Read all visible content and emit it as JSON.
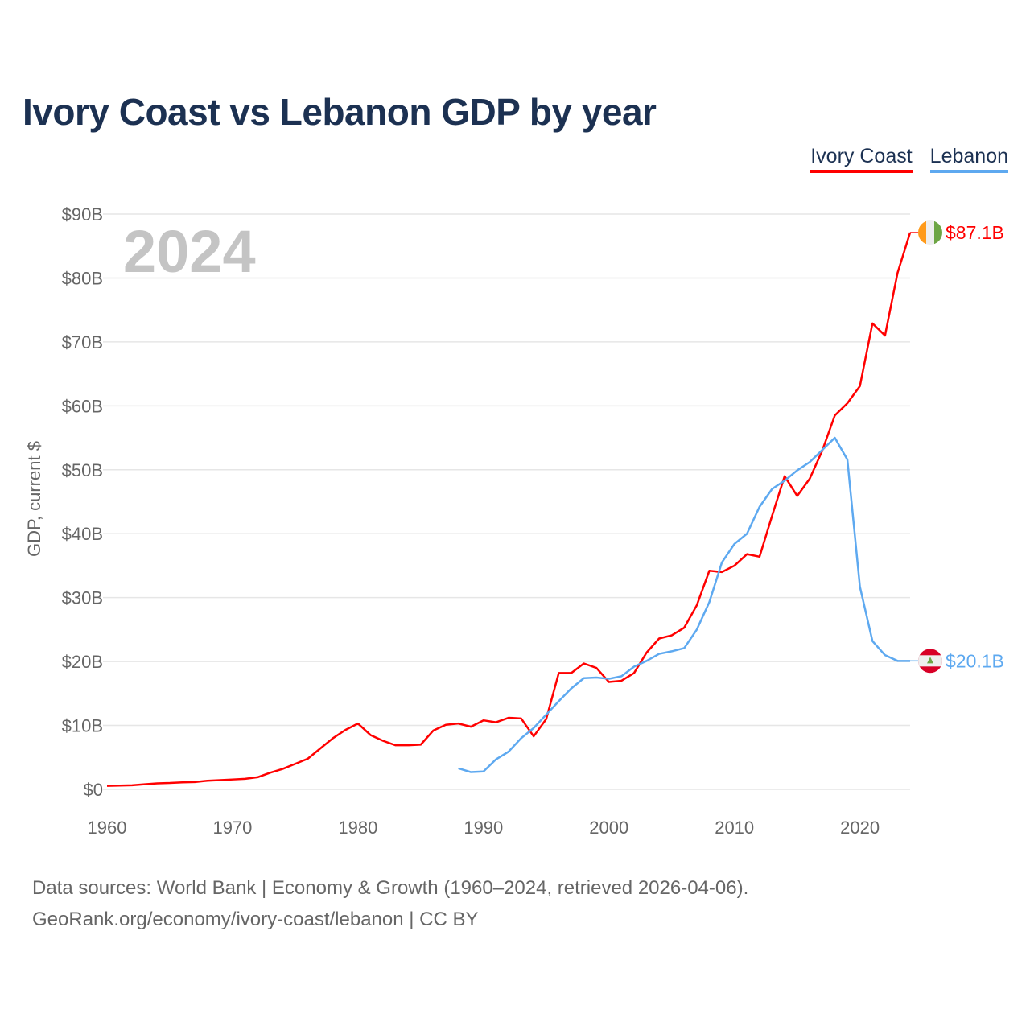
{
  "title": "Ivory Coast vs Lebanon GDP by year",
  "footer": {
    "line1": "Data sources: World Bank | Economy & Growth (1960–2024, retrieved 2026-04-06).",
    "line2": "GeoRank.org/economy/ivory-coast/lebanon | CC BY"
  },
  "chart_data": {
    "type": "line",
    "title": "Ivory Coast vs Lebanon GDP by year",
    "xlabel": "",
    "ylabel": "GDP, current $",
    "year_watermark": "2024",
    "xlim": [
      1960,
      2024
    ],
    "ylim": [
      0,
      90
    ],
    "x_ticks": [
      1960,
      1970,
      1980,
      1990,
      2000,
      2010,
      2020
    ],
    "x_tick_labels": [
      "1960",
      "1970",
      "1980",
      "1990",
      "2000",
      "2010",
      "2020"
    ],
    "y_ticks": [
      0,
      10,
      20,
      30,
      40,
      50,
      60,
      70,
      80,
      90
    ],
    "y_tick_labels": [
      "$0",
      "$10B",
      "$20B",
      "$30B",
      "$40B",
      "$50B",
      "$60B",
      "$70B",
      "$80B",
      "$90B"
    ],
    "grid": true,
    "legend_position": "top-right",
    "units": "billion USD",
    "series": [
      {
        "name": "Ivory Coast",
        "color": "#ff0000",
        "flag_icon": "ivory-coast-flag-icon",
        "end_label": "$87.1B",
        "start_year": 1960,
        "values": [
          0.55,
          0.6,
          0.65,
          0.8,
          0.95,
          1.0,
          1.1,
          1.15,
          1.35,
          1.45,
          1.55,
          1.65,
          1.9,
          2.6,
          3.2,
          4.0,
          4.8,
          6.4,
          8.0,
          9.3,
          10.3,
          8.5,
          7.6,
          6.9,
          6.9,
          7.0,
          9.2,
          10.1,
          10.3,
          9.8,
          10.8,
          10.5,
          11.2,
          11.1,
          8.3,
          11.0,
          18.2,
          18.2,
          19.7,
          19.0,
          16.8,
          17.0,
          18.2,
          21.4,
          23.6,
          24.1,
          25.3,
          28.8,
          34.2,
          34.0,
          35.0,
          36.8,
          36.4,
          42.8,
          49.0,
          45.9,
          48.6,
          53.0,
          58.5,
          60.4,
          63.1,
          72.9,
          71.0,
          80.8,
          87.1
        ]
      },
      {
        "name": "Lebanon",
        "color": "#5ea9f0",
        "flag_icon": "lebanon-flag-icon",
        "end_label": "$20.1B",
        "start_year": 1988,
        "values": [
          3.3,
          2.7,
          2.8,
          4.7,
          5.9,
          8.0,
          9.6,
          11.7,
          13.8,
          15.8,
          17.4,
          17.5,
          17.3,
          17.7,
          19.2,
          20.1,
          21.2,
          21.6,
          22.1,
          25.0,
          29.3,
          35.5,
          38.4,
          40.0,
          44.2,
          47.0,
          48.3,
          49.9,
          51.2,
          53.1,
          55.0,
          51.6,
          31.7,
          23.2,
          21.0,
          20.1,
          20.1
        ]
      }
    ]
  }
}
